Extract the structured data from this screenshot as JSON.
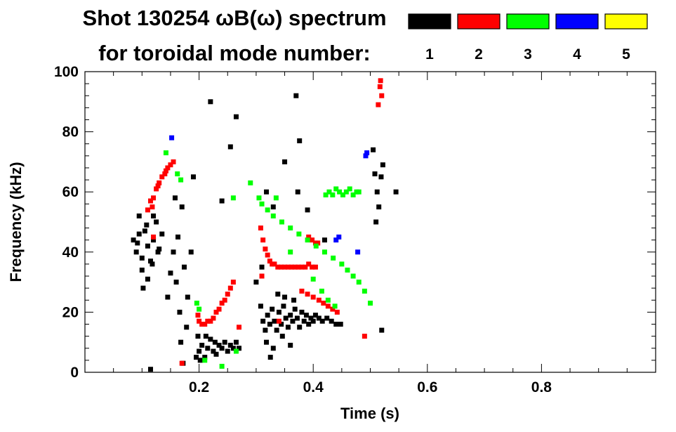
{
  "chart_data": {
    "type": "scatter",
    "title_line1": "Shot 130254 ωB(ω) spectrum",
    "title_line2": "for toroidal mode number:",
    "xlabel": "Time (s)",
    "ylabel": "Frequency (kHz)",
    "xlim": [
      0.0,
      1.0
    ],
    "ylim": [
      0,
      100
    ],
    "x_ticks": [
      0.2,
      0.4,
      0.6,
      0.8
    ],
    "x_tick_labels": [
      "0.2",
      "0.4",
      "0.6",
      "0.8"
    ],
    "y_ticks": [
      0,
      20,
      40,
      60,
      80,
      100
    ],
    "y_tick_labels": [
      "0",
      "20",
      "40",
      "60",
      "80",
      "100"
    ],
    "legend": [
      {
        "label": "1",
        "color": "#000000"
      },
      {
        "label": "2",
        "color": "#ff0000"
      },
      {
        "label": "3",
        "color": "#00ff00"
      },
      {
        "label": "4",
        "color": "#0000ff"
      },
      {
        "label": "5",
        "color": "#ffff00"
      }
    ],
    "series": [
      {
        "name": "1",
        "color": "#000000",
        "points": [
          [
            0.085,
            44
          ],
          [
            0.09,
            40
          ],
          [
            0.095,
            46
          ],
          [
            0.1,
            38
          ],
          [
            0.105,
            47
          ],
          [
            0.11,
            42
          ],
          [
            0.115,
            37
          ],
          [
            0.12,
            44
          ],
          [
            0.125,
            50
          ],
          [
            0.13,
            41
          ],
          [
            0.1,
            34
          ],
          [
            0.11,
            31
          ],
          [
            0.095,
            52
          ],
          [
            0.12,
            52
          ],
          [
            0.135,
            46
          ],
          [
            0.092,
            43
          ],
          [
            0.108,
            49
          ],
          [
            0.118,
            36
          ],
          [
            0.128,
            40
          ],
          [
            0.102,
            28
          ],
          [
            0.115,
            1
          ],
          [
            0.16,
            30
          ],
          [
            0.163,
            45
          ],
          [
            0.166,
            20
          ],
          [
            0.17,
            55
          ],
          [
            0.174,
            35
          ],
          [
            0.178,
            15
          ],
          [
            0.168,
            10
          ],
          [
            0.172,
            3
          ],
          [
            0.18,
            25
          ],
          [
            0.155,
            40
          ],
          [
            0.158,
            58
          ],
          [
            0.145,
            25
          ],
          [
            0.15,
            33
          ],
          [
            0.19,
            65
          ],
          [
            0.186,
            40
          ],
          [
            0.195,
            5
          ],
          [
            0.198,
            12
          ],
          [
            0.2,
            7
          ],
          [
            0.205,
            9
          ],
          [
            0.21,
            5
          ],
          [
            0.215,
            8
          ],
          [
            0.22,
            11
          ],
          [
            0.225,
            7
          ],
          [
            0.23,
            6
          ],
          [
            0.235,
            9
          ],
          [
            0.24,
            8
          ],
          [
            0.245,
            10
          ],
          [
            0.25,
            7
          ],
          [
            0.255,
            9
          ],
          [
            0.26,
            8
          ],
          [
            0.265,
            10
          ],
          [
            0.27,
            8
          ],
          [
            0.202,
            4
          ],
          [
            0.212,
            12
          ],
          [
            0.228,
            10
          ],
          [
            0.308,
            22
          ],
          [
            0.312,
            17
          ],
          [
            0.316,
            14
          ],
          [
            0.32,
            19
          ],
          [
            0.324,
            16
          ],
          [
            0.328,
            21
          ],
          [
            0.332,
            17
          ],
          [
            0.336,
            14
          ],
          [
            0.34,
            20
          ],
          [
            0.344,
            16
          ],
          [
            0.348,
            22
          ],
          [
            0.352,
            18
          ],
          [
            0.356,
            15
          ],
          [
            0.36,
            19
          ],
          [
            0.364,
            17
          ],
          [
            0.368,
            21
          ],
          [
            0.372,
            18
          ],
          [
            0.376,
            15
          ],
          [
            0.38,
            20
          ],
          [
            0.384,
            17
          ],
          [
            0.388,
            19
          ],
          [
            0.392,
            16
          ],
          [
            0.396,
            18
          ],
          [
            0.4,
            17
          ],
          [
            0.404,
            19
          ],
          [
            0.41,
            18
          ],
          [
            0.416,
            17
          ],
          [
            0.424,
            18
          ],
          [
            0.432,
            17
          ],
          [
            0.44,
            16
          ],
          [
            0.448,
            16
          ],
          [
            0.318,
            10
          ],
          [
            0.33,
            8
          ],
          [
            0.346,
            12
          ],
          [
            0.36,
            9
          ],
          [
            0.338,
            26
          ],
          [
            0.35,
            25
          ],
          [
            0.366,
            24
          ],
          [
            0.325,
            5
          ],
          [
            0.31,
            35
          ],
          [
            0.318,
            60
          ],
          [
            0.373,
            60
          ],
          [
            0.376,
            77
          ],
          [
            0.37,
            92
          ],
          [
            0.33,
            55
          ],
          [
            0.505,
            74
          ],
          [
            0.508,
            66
          ],
          [
            0.512,
            60
          ],
          [
            0.515,
            55
          ],
          [
            0.519,
            65
          ],
          [
            0.522,
            69
          ],
          [
            0.51,
            50
          ],
          [
            0.52,
            14
          ],
          [
            0.545,
            60
          ],
          [
            0.255,
            75
          ],
          [
            0.24,
            57
          ],
          [
            0.265,
            85
          ],
          [
            0.3,
            30
          ],
          [
            0.22,
            90
          ],
          [
            0.35,
            70
          ],
          [
            0.39,
            54
          ],
          [
            0.42,
            44
          ]
        ]
      },
      {
        "name": "2",
        "color": "#ff0000",
        "points": [
          [
            0.11,
            54
          ],
          [
            0.115,
            57
          ],
          [
            0.12,
            58
          ],
          [
            0.125,
            61
          ],
          [
            0.13,
            63
          ],
          [
            0.135,
            65
          ],
          [
            0.14,
            66
          ],
          [
            0.145,
            68
          ],
          [
            0.15,
            69
          ],
          [
            0.155,
            70
          ],
          [
            0.118,
            55
          ],
          [
            0.128,
            62
          ],
          [
            0.142,
            67
          ],
          [
            0.198,
            19
          ],
          [
            0.2,
            17
          ],
          [
            0.205,
            16
          ],
          [
            0.21,
            16
          ],
          [
            0.215,
            17
          ],
          [
            0.22,
            17
          ],
          [
            0.225,
            18
          ],
          [
            0.23,
            20
          ],
          [
            0.235,
            21
          ],
          [
            0.24,
            23
          ],
          [
            0.245,
            24
          ],
          [
            0.25,
            26
          ],
          [
            0.255,
            28
          ],
          [
            0.26,
            30
          ],
          [
            0.308,
            48
          ],
          [
            0.312,
            44
          ],
          [
            0.316,
            41
          ],
          [
            0.32,
            39
          ],
          [
            0.324,
            37
          ],
          [
            0.328,
            36
          ],
          [
            0.332,
            36
          ],
          [
            0.338,
            35
          ],
          [
            0.344,
            35
          ],
          [
            0.35,
            35
          ],
          [
            0.356,
            35
          ],
          [
            0.362,
            35
          ],
          [
            0.368,
            35
          ],
          [
            0.374,
            35
          ],
          [
            0.38,
            35
          ],
          [
            0.386,
            35
          ],
          [
            0.392,
            36
          ],
          [
            0.398,
            35
          ],
          [
            0.404,
            35
          ],
          [
            0.38,
            27
          ],
          [
            0.39,
            26
          ],
          [
            0.4,
            25
          ],
          [
            0.41,
            24
          ],
          [
            0.418,
            23
          ],
          [
            0.426,
            22
          ],
          [
            0.434,
            21
          ],
          [
            0.442,
            20
          ],
          [
            0.392,
            45
          ],
          [
            0.398,
            44
          ],
          [
            0.404,
            43
          ],
          [
            0.408,
            43
          ],
          [
            0.517,
            95
          ],
          [
            0.52,
            92
          ],
          [
            0.514,
            89
          ],
          [
            0.518,
            97
          ],
          [
            0.34,
            17
          ],
          [
            0.17,
            3
          ],
          [
            0.27,
            15
          ],
          [
            0.31,
            32
          ],
          [
            0.49,
            12
          ],
          [
            0.12,
            45
          ]
        ]
      },
      {
        "name": "3",
        "color": "#00ff00",
        "points": [
          [
            0.142,
            73
          ],
          [
            0.162,
            66
          ],
          [
            0.168,
            64
          ],
          [
            0.29,
            63
          ],
          [
            0.305,
            58
          ],
          [
            0.31,
            56
          ],
          [
            0.32,
            54
          ],
          [
            0.33,
            52
          ],
          [
            0.345,
            50
          ],
          [
            0.36,
            48
          ],
          [
            0.375,
            46
          ],
          [
            0.39,
            44
          ],
          [
            0.405,
            42
          ],
          [
            0.42,
            40
          ],
          [
            0.435,
            38
          ],
          [
            0.45,
            36
          ],
          [
            0.46,
            34
          ],
          [
            0.47,
            32
          ],
          [
            0.48,
            30
          ],
          [
            0.49,
            27
          ],
          [
            0.5,
            23
          ],
          [
            0.415,
            27
          ],
          [
            0.426,
            24
          ],
          [
            0.438,
            22
          ],
          [
            0.422,
            59
          ],
          [
            0.428,
            60
          ],
          [
            0.434,
            59
          ],
          [
            0.44,
            61
          ],
          [
            0.446,
            60
          ],
          [
            0.452,
            59
          ],
          [
            0.458,
            60
          ],
          [
            0.464,
            61
          ],
          [
            0.47,
            59
          ],
          [
            0.476,
            60
          ],
          [
            0.48,
            60
          ],
          [
            0.196,
            23
          ],
          [
            0.2,
            21
          ],
          [
            0.335,
            58
          ],
          [
            0.4,
            31
          ],
          [
            0.36,
            40
          ],
          [
            0.21,
            4
          ],
          [
            0.24,
            2
          ],
          [
            0.26,
            58
          ],
          [
            0.265,
            7
          ]
        ]
      },
      {
        "name": "4",
        "color": "#0000ff",
        "points": [
          [
            0.152,
            78
          ],
          [
            0.492,
            72
          ],
          [
            0.494,
            73
          ],
          [
            0.445,
            45
          ],
          [
            0.478,
            40
          ],
          [
            0.44,
            44
          ]
        ]
      },
      {
        "name": "5",
        "color": "#ffff00",
        "points": []
      }
    ]
  }
}
